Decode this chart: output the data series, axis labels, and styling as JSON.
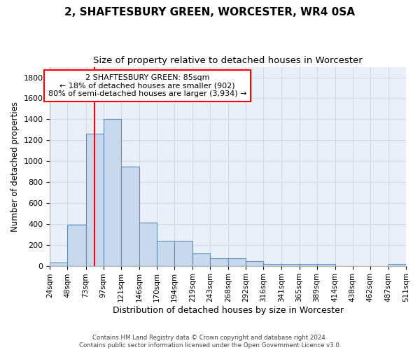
{
  "title": "2, SHAFTESBURY GREEN, WORCESTER, WR4 0SA",
  "subtitle": "Size of property relative to detached houses in Worcester",
  "xlabel": "Distribution of detached houses by size in Worcester",
  "ylabel": "Number of detached properties",
  "bin_edges": [
    24,
    48,
    73,
    97,
    121,
    146,
    170,
    194,
    219,
    243,
    268,
    292,
    316,
    341,
    365,
    389,
    414,
    438,
    462,
    487,
    511
  ],
  "bar_heights": [
    30,
    390,
    1260,
    1400,
    950,
    410,
    235,
    235,
    115,
    70,
    70,
    45,
    20,
    15,
    15,
    15,
    0,
    0,
    0,
    20
  ],
  "bar_color": "#c9d9ed",
  "bar_edge_color": "#5b8db8",
  "grid_color": "#d0d8e8",
  "background_color": "#eaf0f8",
  "property_line_x": 85,
  "property_line_color": "red",
  "annotation_text": "2 SHAFTESBURY GREEN: 85sqm\n← 18% of detached houses are smaller (902)\n80% of semi-detached houses are larger (3,934) →",
  "annotation_box_color": "white",
  "annotation_box_edge_color": "red",
  "ylim": [
    0,
    1900
  ],
  "yticks": [
    0,
    200,
    400,
    600,
    800,
    1000,
    1200,
    1400,
    1600,
    1800
  ],
  "footer_text": "Contains HM Land Registry data © Crown copyright and database right 2024.\nContains public sector information licensed under the Open Government Licence v3.0.",
  "title_fontsize": 11,
  "subtitle_fontsize": 9.5,
  "tick_label_fontsize": 7.5,
  "ylabel_fontsize": 8.5,
  "xlabel_fontsize": 9
}
